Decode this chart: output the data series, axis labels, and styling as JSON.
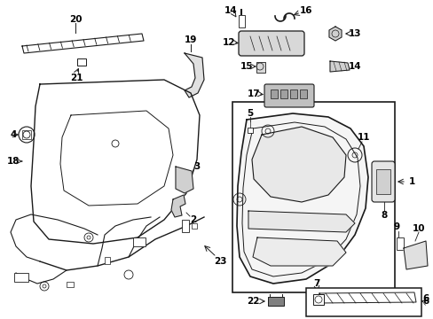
{
  "bg_color": "#ffffff",
  "line_color": "#1a1a1a",
  "gray_light": "#cccccc",
  "gray_mid": "#888888",
  "figsize": [
    4.89,
    3.6
  ],
  "dpi": 100
}
